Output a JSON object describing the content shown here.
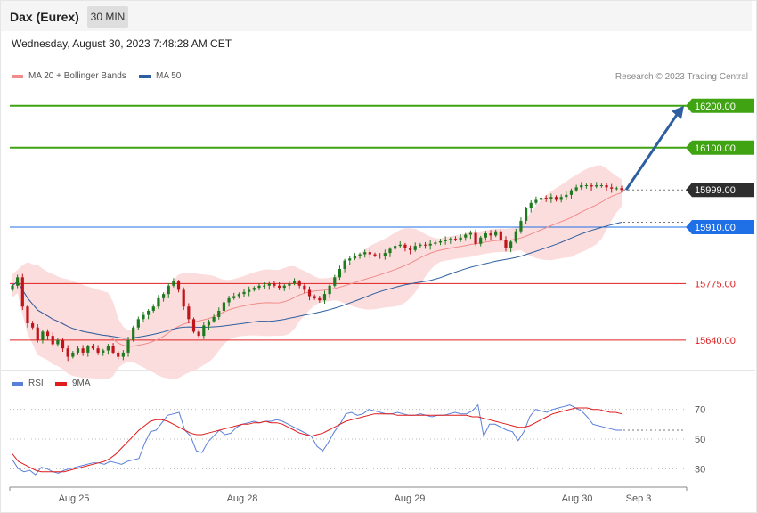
{
  "header": {
    "title": "Dax (Eurex)",
    "timeframe": "30 MIN"
  },
  "datetime": "Wednesday, August 30, 2023 7:48:28 AM CET",
  "credit": "Research © 2023 Trading Central",
  "legend_main": [
    {
      "label": "MA 20 + Bollinger Bands",
      "color": "#f08c8c"
    },
    {
      "label": "MA 50",
      "color": "#2d5fa0"
    }
  ],
  "legend_rsi": [
    {
      "label": "RSI",
      "color": "#5a7fd8"
    },
    {
      "label": "9MA",
      "color": "#e01b1b"
    }
  ],
  "colors": {
    "up_candle": "#1f7a1f",
    "down_candle": "#c0141a",
    "band_fill": "#fbd7d7",
    "ma20": "#f08c8c",
    "ma50": "#2d5fa0",
    "resistance": "#3fa312",
    "support": "#e02020",
    "pivot": "#1f6fe6",
    "last_price": "#2e2e2e",
    "arrow": "#2d5fa0"
  },
  "chart_data": [
    {
      "type": "candlestick",
      "title": "",
      "x_labels": [
        "Aug 25",
        "Aug 28",
        "Aug 29",
        "Aug 30",
        "Sep 3"
      ],
      "ylim": [
        15580,
        16240
      ],
      "levels": [
        {
          "value": 16200.0,
          "label": "16200.00",
          "role": "resistance"
        },
        {
          "value": 16100.0,
          "label": "16100.00",
          "role": "resistance"
        },
        {
          "value": 15999.0,
          "label": "15999.00",
          "role": "last_price"
        },
        {
          "value": 15910.0,
          "label": "15910.00",
          "role": "pivot"
        },
        {
          "value": 15775.0,
          "label": "15775.00",
          "role": "support"
        },
        {
          "value": 15640.0,
          "label": "15640.00",
          "role": "support"
        }
      ],
      "close": [
        15770,
        15790,
        15720,
        15680,
        15670,
        15640,
        15660,
        15650,
        15630,
        15640,
        15620,
        15600,
        15610,
        15620,
        15610,
        15625,
        15620,
        15610,
        15615,
        15625,
        15610,
        15600,
        15610,
        15640,
        15670,
        15690,
        15700,
        15710,
        15720,
        15740,
        15750,
        15770,
        15780,
        15760,
        15720,
        15690,
        15660,
        15650,
        15675,
        15685,
        15695,
        15710,
        15730,
        15740,
        15745,
        15750,
        15755,
        15760,
        15765,
        15770,
        15770,
        15775,
        15770,
        15765,
        15770,
        15775,
        15780,
        15770,
        15760,
        15745,
        15740,
        15735,
        15750,
        15770,
        15790,
        15810,
        15830,
        15835,
        15840,
        15845,
        15850,
        15845,
        15842,
        15840,
        15848,
        15858,
        15865,
        15868,
        15860,
        15855,
        15865,
        15868,
        15866,
        15870,
        15873,
        15876,
        15880,
        15882,
        15880,
        15885,
        15892,
        15896,
        15870,
        15885,
        15895,
        15890,
        15900,
        15880,
        15860,
        15875,
        15900,
        15925,
        15955,
        15968,
        15975,
        15980,
        15978,
        15982,
        15975,
        15982,
        15987,
        15998,
        16005,
        16010,
        16010,
        16007,
        16010,
        16010,
        16005,
        16002,
        16003,
        15999
      ],
      "rsi": {
        "ylim": [
          20,
          80
        ],
        "ref_lines": [
          70,
          50,
          30
        ],
        "rsi": [
          36,
          30,
          28,
          29,
          26,
          31,
          30,
          28,
          27,
          29,
          30,
          31,
          32,
          33,
          34,
          34,
          33,
          35,
          34,
          33,
          35,
          36,
          37,
          47,
          55,
          56,
          61,
          66,
          67,
          68,
          56,
          52,
          42,
          41,
          48,
          52,
          56,
          53,
          54,
          58,
          60,
          61,
          62,
          61,
          62,
          62,
          63,
          62,
          60,
          58,
          56,
          54,
          52,
          45,
          42,
          48,
          55,
          60,
          67,
          68,
          66,
          67,
          70,
          69,
          68,
          67,
          67,
          68,
          67,
          66,
          66,
          67,
          66,
          65,
          66,
          66,
          67,
          68,
          67,
          67,
          69,
          73,
          52,
          60,
          60,
          58,
          56,
          55,
          49,
          55,
          65,
          70,
          69,
          68,
          70,
          71,
          72,
          73,
          71,
          69,
          65,
          60,
          59,
          58,
          57,
          56,
          56
        ],
        "ma9": [
          40,
          35,
          33,
          31,
          29,
          28,
          28,
          28,
          28,
          28,
          29,
          30,
          31,
          32,
          33,
          34,
          35,
          37,
          40,
          44,
          48,
          52,
          56,
          59,
          62,
          63,
          63,
          62,
          60,
          58,
          56,
          54,
          53,
          53,
          54,
          55,
          56,
          57,
          58,
          59,
          60,
          60,
          61,
          61,
          62,
          61,
          61,
          60,
          58,
          56,
          54,
          53,
          52,
          53,
          54,
          56,
          58,
          60,
          62,
          63,
          64,
          65,
          66,
          67,
          67,
          67,
          67,
          66,
          66,
          66,
          66,
          66,
          66,
          66,
          66,
          66,
          66,
          66,
          66,
          66,
          65,
          65,
          64,
          63,
          62,
          61,
          60,
          59,
          58,
          58,
          59,
          61,
          63,
          65,
          67,
          68,
          69,
          70,
          71,
          71,
          71,
          70,
          70,
          69,
          68,
          68,
          67
        ],
        "last_value": 56
      }
    }
  ]
}
